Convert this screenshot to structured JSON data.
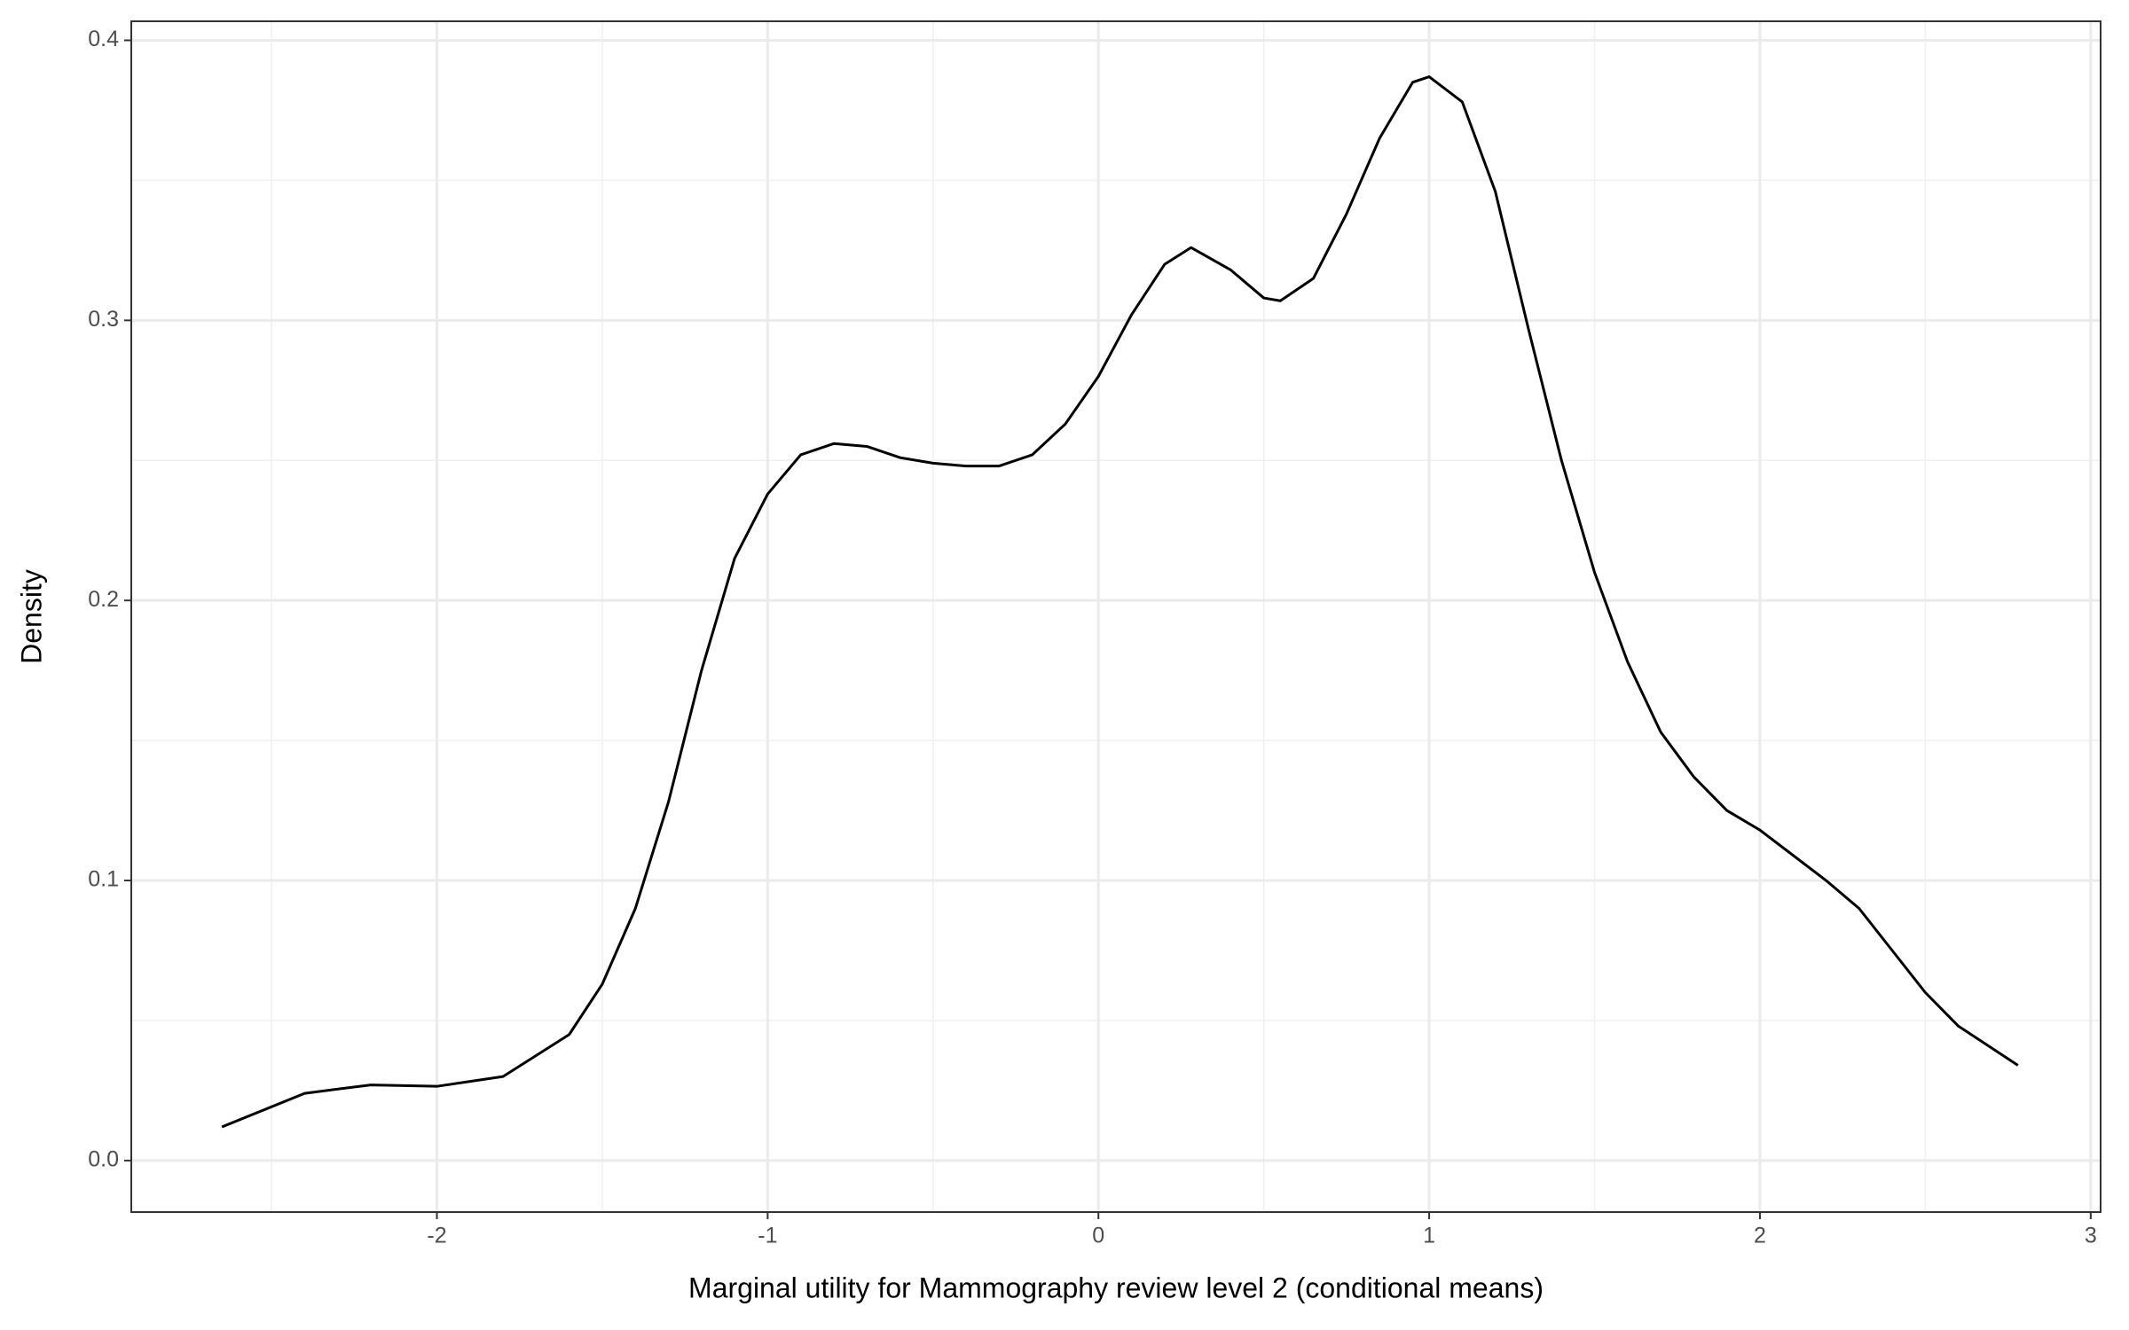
{
  "chart_data": {
    "type": "line",
    "x_label": "Marginal utility for Mammography review level 2 (conditional means)",
    "y_label": "Density",
    "xlim": [
      -2.924,
      3.03
    ],
    "ylim": [
      -0.0184,
      0.4068
    ],
    "xticks": [
      -2,
      -1,
      0,
      1,
      2,
      3
    ],
    "yticks": [
      {
        "value": 0,
        "label": "0.0"
      },
      0.1,
      0.2,
      0.3,
      0.4
    ],
    "grid": true,
    "minor_grid": true,
    "series": [
      {
        "name": "Density",
        "color": "#000000",
        "x": [
          -2.65,
          -2.4,
          -2.2,
          -2.0,
          -1.8,
          -1.6,
          -1.5,
          -1.4,
          -1.3,
          -1.2,
          -1.1,
          -1.0,
          -0.9,
          -0.8,
          -0.7,
          -0.6,
          -0.5,
          -0.4,
          -0.3,
          -0.2,
          -0.1,
          0.0,
          0.1,
          0.2,
          0.28,
          0.4,
          0.5,
          0.55,
          0.65,
          0.75,
          0.85,
          0.95,
          1.0,
          1.1,
          1.2,
          1.3,
          1.4,
          1.5,
          1.6,
          1.7,
          1.8,
          1.9,
          2.0,
          2.2,
          2.3,
          2.4,
          2.5,
          2.6,
          2.78
        ],
        "values": [
          0.012,
          0.024,
          0.027,
          0.0265,
          0.03,
          0.045,
          0.063,
          0.09,
          0.128,
          0.175,
          0.215,
          0.238,
          0.252,
          0.256,
          0.255,
          0.251,
          0.249,
          0.248,
          0.248,
          0.252,
          0.263,
          0.28,
          0.302,
          0.32,
          0.326,
          0.318,
          0.308,
          0.307,
          0.315,
          0.338,
          0.365,
          0.385,
          0.387,
          0.378,
          0.346,
          0.297,
          0.25,
          0.21,
          0.178,
          0.153,
          0.137,
          0.125,
          0.118,
          0.1,
          0.09,
          0.075,
          0.06,
          0.048,
          0.034
        ]
      }
    ]
  }
}
